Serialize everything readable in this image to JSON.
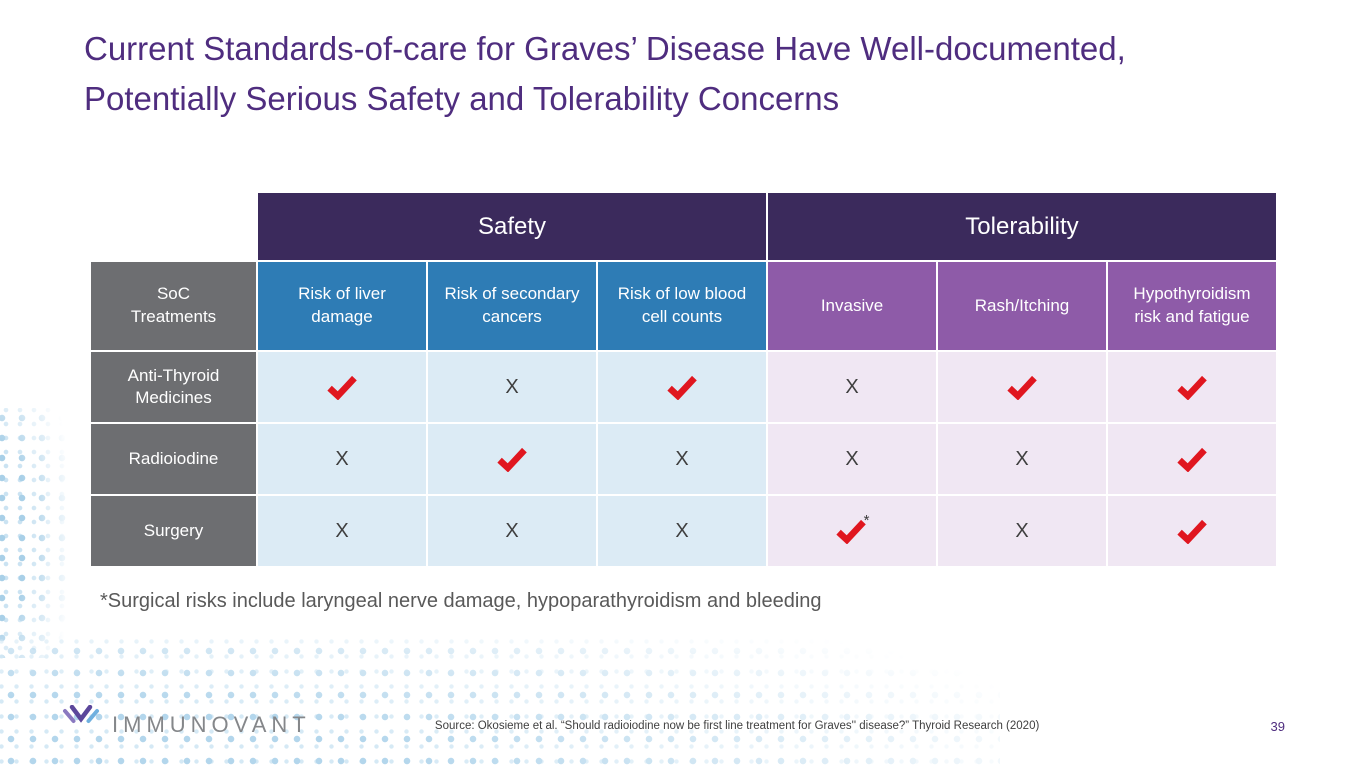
{
  "slide": {
    "title": "Current Standards-of-care for Graves’ Disease Have Well-documented, Potentially Serious Safety and Tolerability Concerns",
    "footnote": "*Surgical risks include laryngeal nerve damage, hypoparathyroidism and bleeding",
    "source": "Source: Okosieme et al. “Should radioiodine now be first line treatment for Graves'' disease?” Thyroid Research (2020)",
    "page_number": "39",
    "logo_text": "IMMUNOVANT"
  },
  "table": {
    "group_headers": [
      {
        "label": "Safety"
      },
      {
        "label": "Tolerability"
      }
    ],
    "corner_header": "SoC\nTreatments",
    "column_headers": [
      "Risk of liver damage",
      "Risk of secondary cancers",
      "Risk of low blood cell counts",
      "Invasive",
      "Rash/Itching",
      "Hypothyroidism risk and fatigue"
    ],
    "rows": [
      {
        "label": "Anti-Thyroid Medicines",
        "cells": [
          "check",
          "x",
          "check",
          "x",
          "check",
          "check"
        ]
      },
      {
        "label": "Radioiodine",
        "cells": [
          "x",
          "check",
          "x",
          "x",
          "x",
          "check"
        ]
      },
      {
        "label": "Surgery",
        "cells": [
          "x",
          "x",
          "x",
          "check*",
          "x",
          "check"
        ]
      }
    ]
  },
  "icons": {
    "check": "check-icon",
    "x": "x-mark",
    "logo": "immunovant-logo-icon"
  },
  "colors": {
    "title-purple": "#4F2D7F",
    "band-purple": "#3B2A5C",
    "safety-blue": "#2E7CB5",
    "tolerability-purple": "#8E5BA8",
    "label-gray": "#6D6E71",
    "safety-cell": "#DCEBF5",
    "tolerability-cell": "#F0E7F3",
    "check-red": "#E0161F",
    "x-gray": "#3F3F3F",
    "dots-blue": "#AFD3E9"
  }
}
